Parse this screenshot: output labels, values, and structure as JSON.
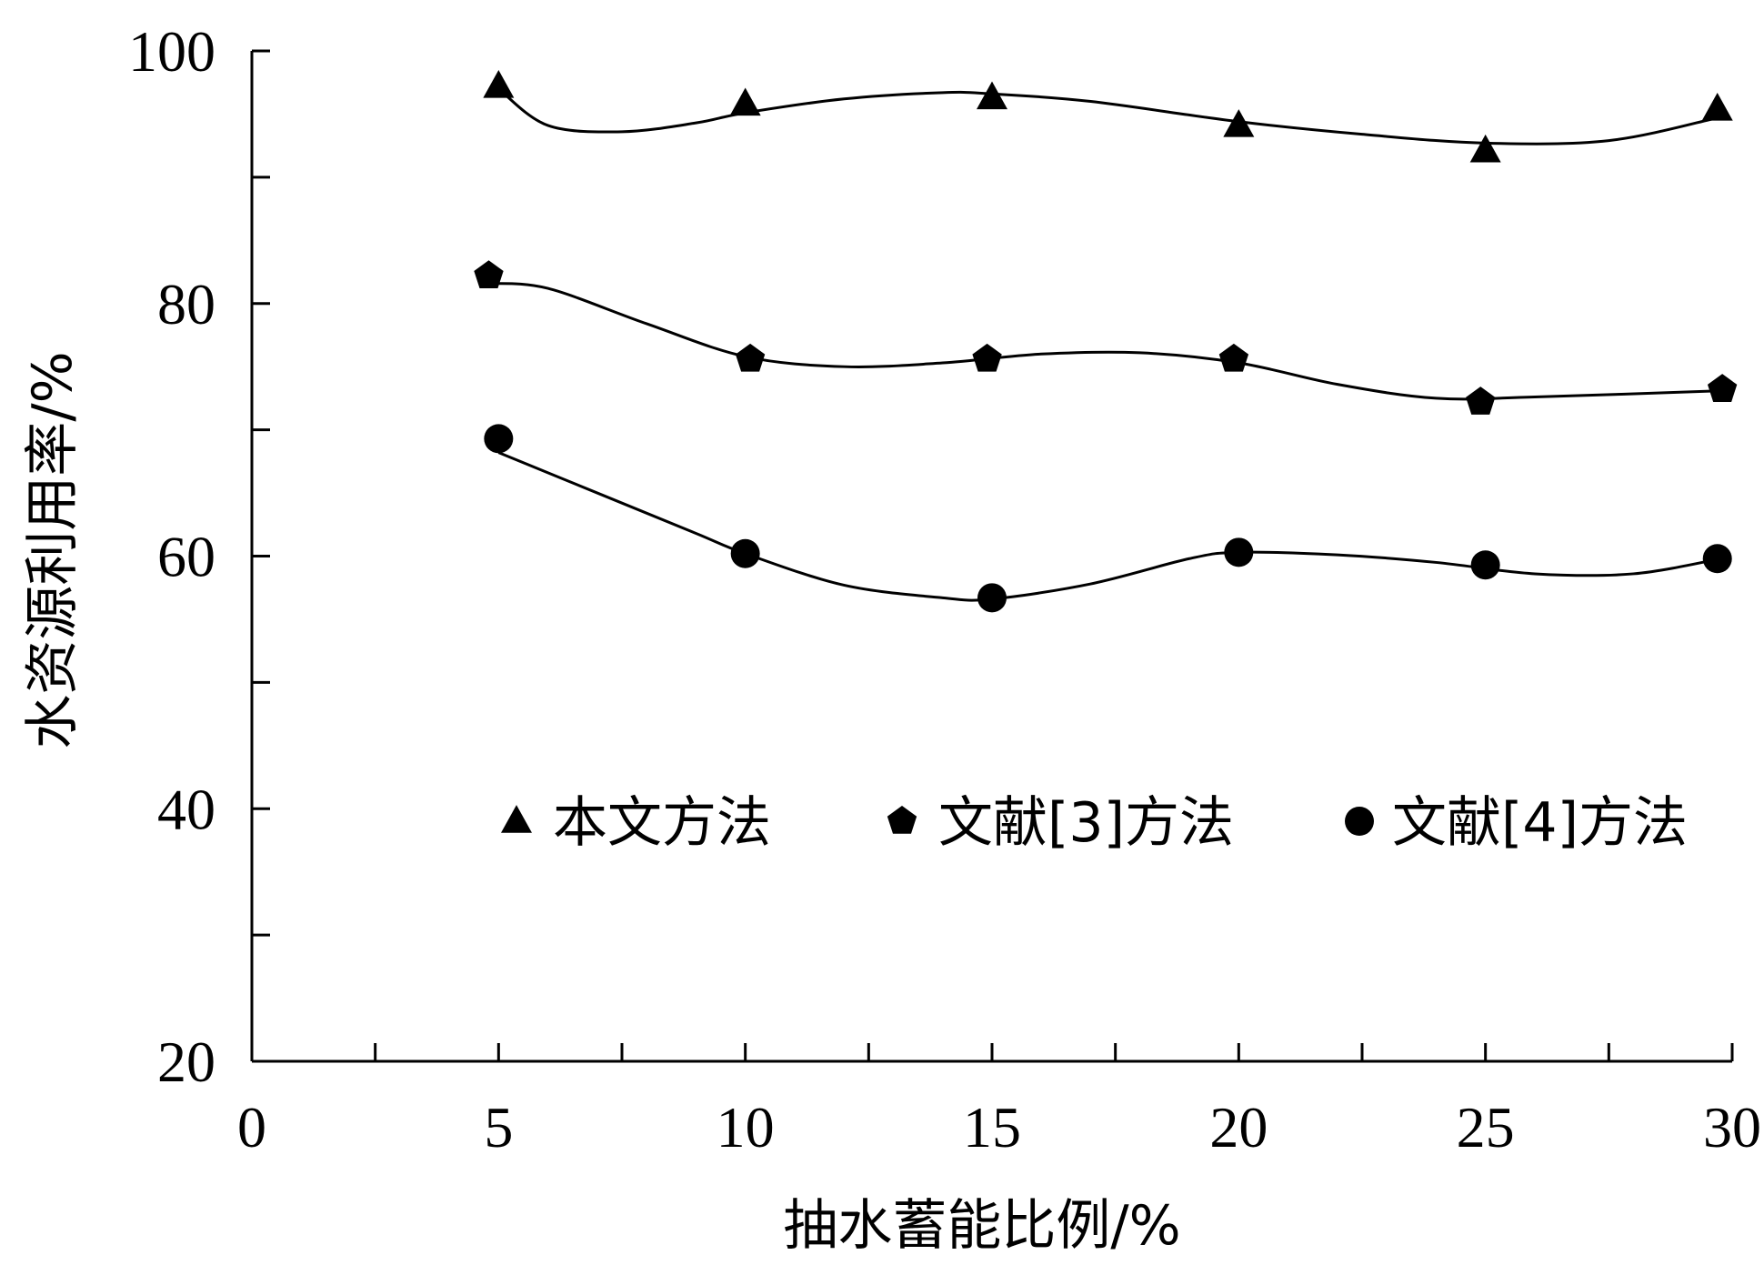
{
  "chart_data": {
    "type": "line",
    "xlabel": "抽水蓄能比例/%",
    "ylabel": "水资源利用率/%",
    "xlim": [
      0,
      30
    ],
    "ylim": [
      20,
      100
    ],
    "x_ticks": [
      0,
      5,
      10,
      15,
      20,
      25,
      30
    ],
    "y_tick_labels": [
      20,
      40,
      60,
      80,
      100
    ],
    "y_minor_ticks": [
      30,
      50,
      70,
      90
    ],
    "x_minor_ticks": [
      2.5,
      7.5,
      12.5,
      17.5,
      22.5,
      27.5
    ],
    "grid": false,
    "legend_position": "middle-right",
    "series": [
      {
        "name": "本文方法",
        "marker": "triangle",
        "x": [
          5,
          10,
          15,
          20,
          25,
          29.7
        ],
        "y": [
          97.2,
          95.8,
          96.3,
          94.1,
          92.1,
          95.4
        ],
        "curve": [
          [
            5,
            97.0
          ],
          [
            6,
            94.1
          ],
          [
            7.5,
            93.6
          ],
          [
            9,
            94.3
          ],
          [
            10,
            95.1
          ],
          [
            12,
            96.2
          ],
          [
            14,
            96.7
          ],
          [
            15,
            96.6
          ],
          [
            17,
            96.0
          ],
          [
            20,
            94.4
          ],
          [
            22.5,
            93.4
          ],
          [
            25,
            92.7
          ],
          [
            27.5,
            92.9
          ],
          [
            29.7,
            94.7
          ]
        ]
      },
      {
        "name": "文献[3]方法",
        "marker": "pentagon",
        "x": [
          4.8,
          10.1,
          14.9,
          19.9,
          24.9,
          29.8
        ],
        "y": [
          82.2,
          75.6,
          75.6,
          75.6,
          72.2,
          73.2
        ],
        "curve": [
          [
            4.8,
            81.6
          ],
          [
            6,
            81.2
          ],
          [
            8,
            78.4
          ],
          [
            10,
            75.8
          ],
          [
            12,
            75.0
          ],
          [
            14,
            75.3
          ],
          [
            16,
            76.0
          ],
          [
            18,
            76.1
          ],
          [
            20,
            75.3
          ],
          [
            22,
            73.6
          ],
          [
            24,
            72.5
          ],
          [
            26,
            72.6
          ],
          [
            29.8,
            73.1
          ]
        ]
      },
      {
        "name": "文献[4]方法",
        "marker": "circle",
        "x": [
          5,
          10,
          15,
          20,
          25,
          29.7
        ],
        "y": [
          69.3,
          60.2,
          56.7,
          60.3,
          59.3,
          59.8
        ],
        "curve": [
          [
            5,
            68.2
          ],
          [
            7,
            65.0
          ],
          [
            9,
            61.8
          ],
          [
            10,
            60.2
          ],
          [
            12,
            57.7
          ],
          [
            14,
            56.7
          ],
          [
            15,
            56.6
          ],
          [
            17,
            57.8
          ],
          [
            19,
            59.8
          ],
          [
            20,
            60.3
          ],
          [
            22,
            60.1
          ],
          [
            24,
            59.5
          ],
          [
            26,
            58.6
          ],
          [
            28,
            58.6
          ],
          [
            29.9,
            59.9
          ]
        ]
      }
    ]
  }
}
